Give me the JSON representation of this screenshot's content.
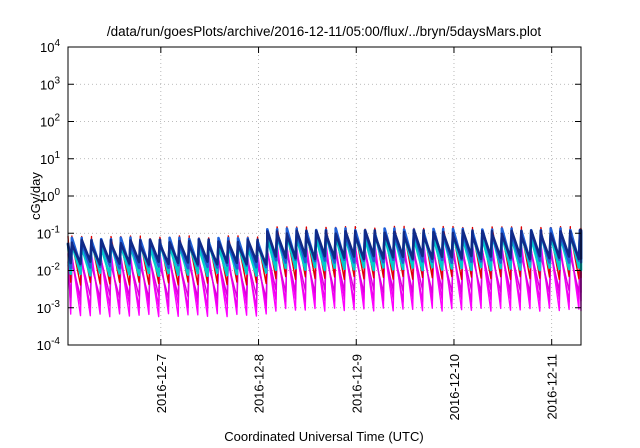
{
  "chart_data": {
    "type": "line",
    "title": "/data/run/goesPlots/archive/2016-12-11/05:00/flux/../bryn/5daysMars.plot",
    "xlabel": "Coordinated Universal Time (UTC)",
    "ylabel": "cGy/day",
    "yscale": "log",
    "ylim_exponents": [
      -4,
      4
    ],
    "y_ticks": [
      {
        "base": "10",
        "exp": "-4"
      },
      {
        "base": "10",
        "exp": "-3"
      },
      {
        "base": "10",
        "exp": "-2"
      },
      {
        "base": "10",
        "exp": "-1"
      },
      {
        "base": "10",
        "exp": "0"
      },
      {
        "base": "10",
        "exp": "1"
      },
      {
        "base": "10",
        "exp": "2"
      },
      {
        "base": "10",
        "exp": "3"
      },
      {
        "base": "10",
        "exp": "4"
      }
    ],
    "x_range_days": [
      6.05,
      11.3
    ],
    "x_ticks": [
      {
        "label": "2016-12-7",
        "day": 7
      },
      {
        "label": "2016-12-8",
        "day": 8
      },
      {
        "label": "2016-12-9",
        "day": 9
      },
      {
        "label": "2016-12-10",
        "day": 10
      },
      {
        "label": "2016-12-11",
        "day": 11
      }
    ],
    "grid": true,
    "legend": "none",
    "sawtooth": {
      "period_days": 0.1,
      "first_peak_day": 6.09,
      "shift_day": 8.05,
      "peak_boost_after_shift": 0.25,
      "note": "Periodic sawtooth dose-rate traces: sharp rise then decay each cycle; amplitude increases after 2016-12-8."
    },
    "series": [
      {
        "name": "magenta-lowest",
        "color": "#ff00ff",
        "peak_log10": -1.6,
        "trough_log10": -3.2
      },
      {
        "name": "magenta-low",
        "color": "#ee00ee",
        "peak_log10": -1.7,
        "trough_log10": -2.95
      },
      {
        "name": "magenta-mid",
        "color": "#dd00dd",
        "peak_log10": -1.8,
        "trough_log10": -2.7
      },
      {
        "name": "red",
        "color": "#e00000",
        "peak_log10": -1.15,
        "trough_log10": -2.35
      },
      {
        "name": "cyan",
        "color": "#00cccc",
        "peak_log10": -1.3,
        "trough_log10": -2.1
      },
      {
        "name": "blue",
        "color": "#1f5fd6",
        "peak_log10": -1.2,
        "trough_log10": -1.9
      },
      {
        "name": "dark-navy",
        "color": "#102a88",
        "peak_log10": -1.25,
        "trough_log10": -1.8
      }
    ]
  }
}
